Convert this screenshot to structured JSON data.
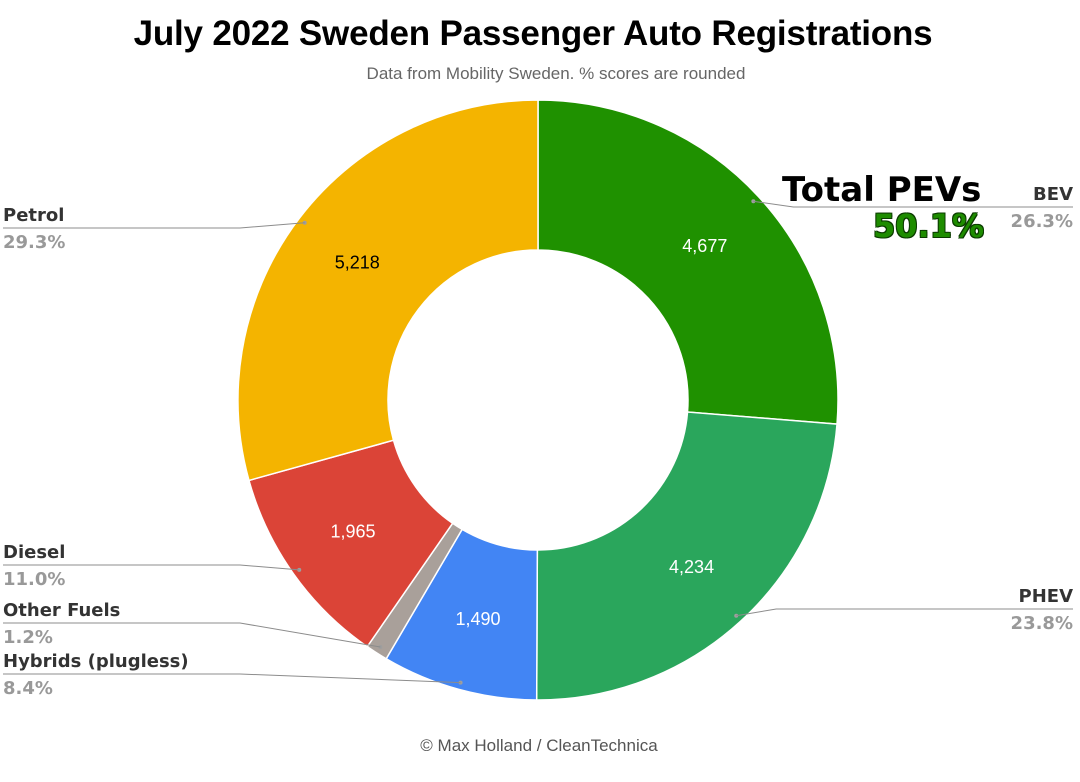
{
  "title": "July 2022 Sweden Passenger Auto Registrations",
  "subtitle": "Data from Mobility Sweden. % scores are rounded",
  "footer": "© Max Holland / CleanTechnica",
  "annotation": {
    "label": "Total PEVs",
    "value": "50.1%",
    "value_color": "#1e8c00"
  },
  "chart_data": {
    "type": "pie",
    "donut": true,
    "start": "top",
    "direction": "clockwise",
    "slices": [
      {
        "name": "BEV",
        "value": 4677,
        "value_label": "4,677",
        "percent": "26.3%",
        "color": "#1f9100",
        "label_color": "#ffffff",
        "label_side": "right"
      },
      {
        "name": "PHEV",
        "value": 4234,
        "value_label": "4,234",
        "percent": "23.8%",
        "color": "#2aa65c",
        "label_color": "#ffffff",
        "label_side": "right"
      },
      {
        "name": "Hybrids (plugless)",
        "value": 1490,
        "value_label": "1,490",
        "percent": "8.4%",
        "color": "#4285f4",
        "label_color": "#ffffff",
        "label_side": "left"
      },
      {
        "name": "Other Fuels",
        "value": 213,
        "value_label": "",
        "percent": "1.2%",
        "color": "#a9a09a",
        "label_color": "#ffffff",
        "label_side": "left"
      },
      {
        "name": "Diesel",
        "value": 1965,
        "value_label": "1,965",
        "percent": "11.0%",
        "color": "#db4437",
        "label_color": "#ffffff",
        "label_side": "left"
      },
      {
        "name": "Petrol",
        "value": 5218,
        "value_label": "5,218",
        "percent": "29.3%",
        "color": "#f4b400",
        "label_color": "#000000",
        "label_side": "left"
      }
    ]
  }
}
